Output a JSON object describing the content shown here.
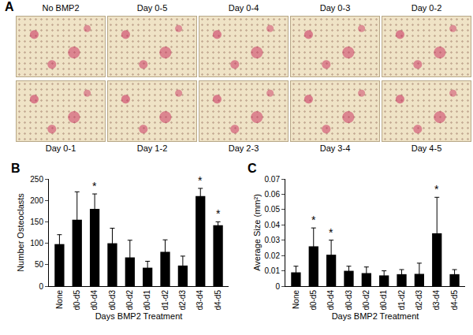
{
  "micrographs": {
    "label": "A",
    "captions_top": [
      "No BMP2",
      "Day 0-5",
      "Day 0-4",
      "Day 0-3",
      "Day 0-2"
    ],
    "captions_bottom": [
      "Day 0-1",
      "Day 1-2",
      "Day 2-3",
      "Day 3-4",
      "Day 4-5"
    ]
  },
  "chart_data": [
    {
      "type": "bar",
      "label": "B",
      "x_label": "Days BMP2 Treatment",
      "y_label": "Number Osteoclasts",
      "categories": [
        "None",
        "d0-d5",
        "d0-d4",
        "d0-d3",
        "d0-d2",
        "d0-d1",
        "d1-d2",
        "d2-d3",
        "d3-d4",
        "d4-d5"
      ],
      "values": [
        98,
        155,
        180,
        100,
        67,
        43,
        80,
        48,
        210,
        142
      ],
      "errors": [
        22,
        65,
        35,
        35,
        40,
        15,
        28,
        22,
        18,
        8
      ],
      "color": "#000000",
      "ylim": [
        0,
        250
      ],
      "yticks": [
        0,
        50,
        100,
        150,
        200,
        250
      ],
      "grid": false,
      "annotations": [
        {
          "x": "d0-d4",
          "text": "*"
        },
        {
          "x": "d3-d4",
          "text": "*"
        },
        {
          "x": "d4-d5",
          "text": "*"
        }
      ]
    },
    {
      "type": "bar",
      "label": "C",
      "x_label": "Days BMP2 Treatment",
      "y_label": "Average Size (mm²)",
      "categories": [
        "None",
        "d0-d5",
        "d0-d4",
        "d0-d3",
        "d0-d2",
        "d0-d1",
        "d1-d2",
        "d2-d3",
        "d3-d4",
        "d4-d5"
      ],
      "values": [
        0.009,
        0.026,
        0.0205,
        0.01,
        0.0085,
        0.007,
        0.0078,
        0.008,
        0.0345,
        0.0078
      ],
      "errors": [
        0.004,
        0.012,
        0.0095,
        0.003,
        0.004,
        0.003,
        0.003,
        0.007,
        0.0235,
        0.003
      ],
      "color": "#000000",
      "ylim": [
        0,
        0.07
      ],
      "yticks": [
        0,
        0.01,
        0.02,
        0.03,
        0.04,
        0.05,
        0.06,
        0.07
      ],
      "grid": false,
      "annotations": [
        {
          "x": "d0-d5",
          "text": "*"
        },
        {
          "x": "d0-d4",
          "text": "*"
        },
        {
          "x": "d3-d4",
          "text": "*"
        }
      ]
    }
  ]
}
